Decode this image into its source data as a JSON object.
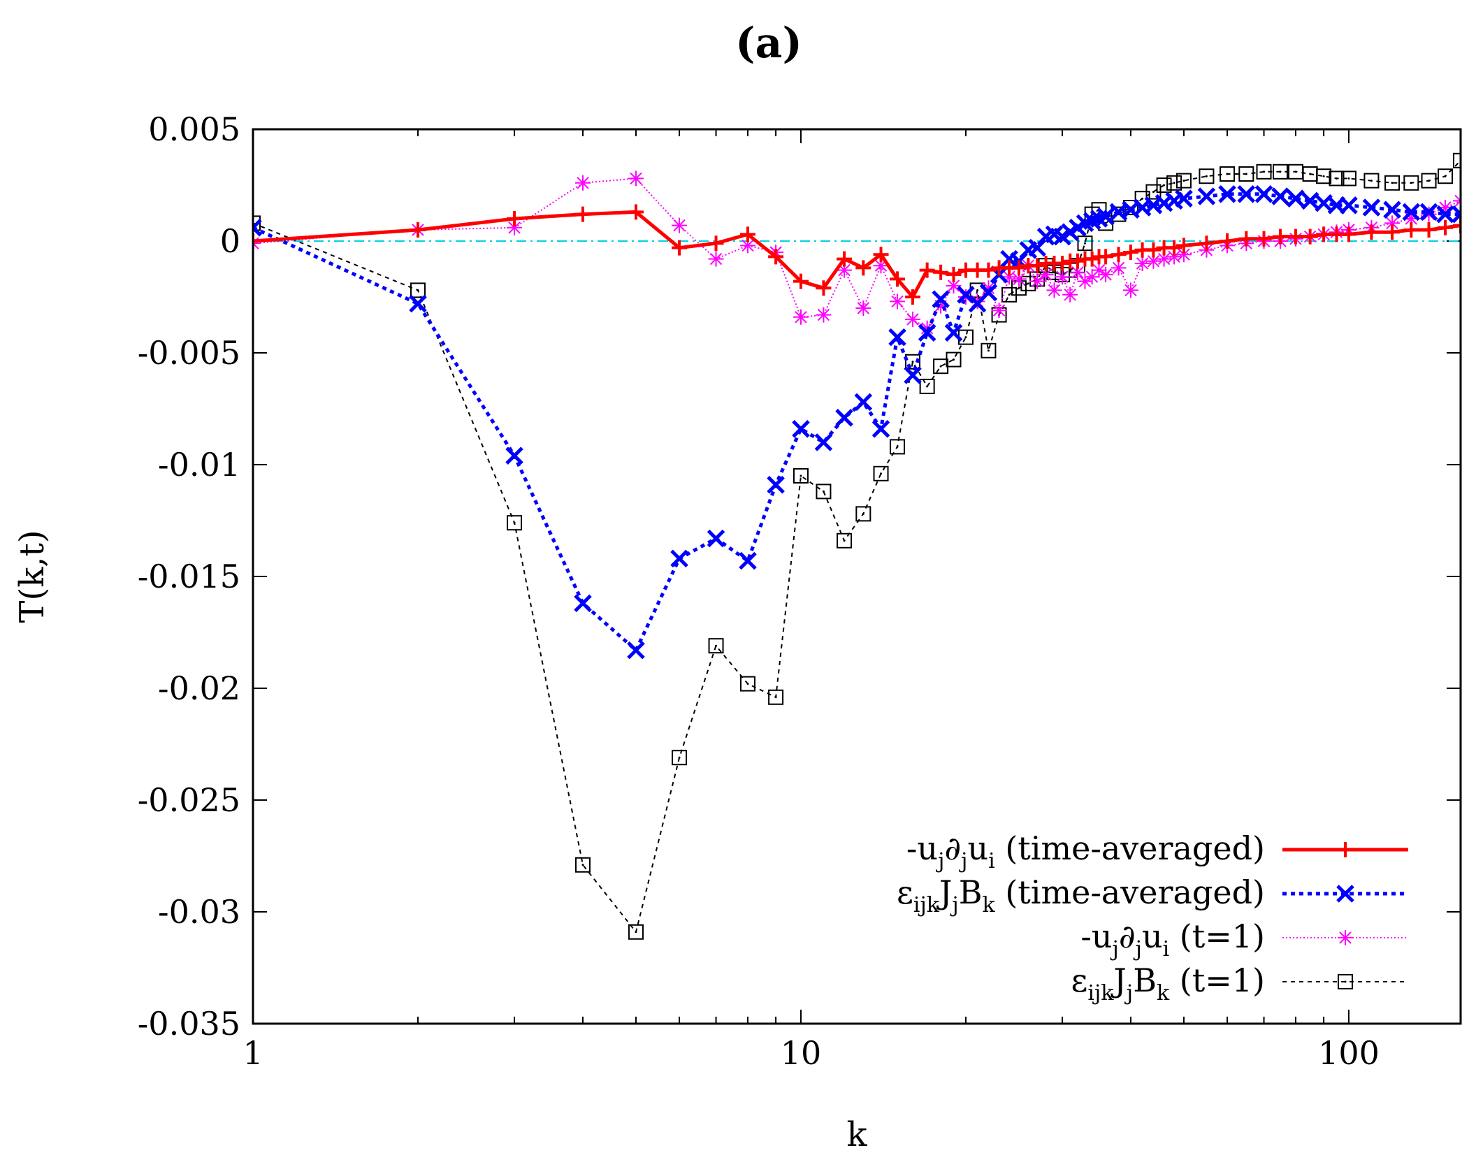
{
  "chart_data": {
    "type": "line",
    "title": "(a)",
    "xlabel": "k",
    "ylabel": "T(k,t)",
    "xscale": "log",
    "xlim": [
      1,
      160
    ],
    "ylim": [
      -0.035,
      0.005
    ],
    "xticks": [
      {
        "value": 1,
        "label": "1"
      },
      {
        "value": 10,
        "label": "10"
      },
      {
        "value": 100,
        "label": "100"
      }
    ],
    "yticks": [
      {
        "value": 0.005,
        "label": "0.005"
      },
      {
        "value": 0,
        "label": "0"
      },
      {
        "value": -0.005,
        "label": "-0.005"
      },
      {
        "value": -0.01,
        "label": "-0.01"
      },
      {
        "value": -0.015,
        "label": "-0.015"
      },
      {
        "value": -0.02,
        "label": "-0.02"
      },
      {
        "value": -0.025,
        "label": "-0.025"
      },
      {
        "value": -0.03,
        "label": "-0.03"
      },
      {
        "value": -0.035,
        "label": "-0.035"
      }
    ],
    "zero_line": {
      "value": 0,
      "color": "#00d0e0"
    },
    "legend_position": "bottom-right",
    "series": [
      {
        "name": "-u_j∂_ju_i (time-averaged)",
        "legend": [
          [
            "-u",
            ""
          ],
          [
            "j",
            "sub"
          ],
          [
            "∂",
            ""
          ],
          [
            "j",
            "sub"
          ],
          [
            "u",
            ""
          ],
          [
            "i",
            "sub"
          ],
          [
            " (time-averaged)",
            ""
          ]
        ],
        "color": "#ff0000",
        "marker": "plus",
        "dash": "",
        "width": 5,
        "x": [
          1,
          2,
          3,
          4,
          5,
          6,
          7,
          8,
          9,
          10,
          11,
          12,
          13,
          14,
          15,
          16,
          17,
          18,
          19,
          20,
          21,
          22,
          23,
          24,
          25,
          26,
          27,
          28,
          29,
          30,
          31,
          32,
          33,
          34,
          35,
          36,
          38,
          40,
          42,
          44,
          46,
          48,
          50,
          55,
          60,
          65,
          70,
          75,
          80,
          85,
          90,
          95,
          100,
          110,
          120,
          130,
          140,
          150,
          160
        ],
        "y": [
          0.0,
          0.0005,
          0.001,
          0.0012,
          0.0013,
          -0.0003,
          -0.0001,
          0.0003,
          -0.0007,
          -0.0018,
          -0.0021,
          -0.0008,
          -0.0012,
          -0.0006,
          -0.0017,
          -0.0025,
          -0.0013,
          -0.0014,
          -0.0015,
          -0.0013,
          -0.0013,
          -0.0013,
          -0.0012,
          -0.0012,
          -0.0012,
          -0.0011,
          -0.0011,
          -0.001,
          -0.001,
          -0.001,
          -0.0009,
          -0.0009,
          -0.0008,
          -0.0008,
          -0.0007,
          -0.0007,
          -0.0006,
          -0.0005,
          -0.0004,
          -0.0004,
          -0.0003,
          -0.0003,
          -0.0002,
          -0.0001,
          0.0,
          0.0001,
          0.0001,
          0.0002,
          0.0002,
          0.0002,
          0.0003,
          0.0003,
          0.0003,
          0.0004,
          0.0004,
          0.0005,
          0.0005,
          0.0006,
          0.0007
        ]
      },
      {
        "name": "ε_ijkJ_jB_k (time-averaged)",
        "legend": [
          [
            "ε",
            ""
          ],
          [
            "ijk",
            "sub"
          ],
          [
            "J",
            ""
          ],
          [
            "j",
            "sub"
          ],
          [
            "B",
            ""
          ],
          [
            "k",
            "sub"
          ],
          [
            " (time-averaged)",
            ""
          ]
        ],
        "color": "#0000ff",
        "marker": "cross",
        "dash": "6,6",
        "width": 5,
        "x": [
          1,
          2,
          3,
          4,
          5,
          6,
          7,
          8,
          9,
          10,
          11,
          12,
          13,
          14,
          15,
          16,
          17,
          18,
          19,
          20,
          21,
          22,
          23,
          24,
          25,
          26,
          27,
          28,
          29,
          30,
          31,
          32,
          33,
          34,
          35,
          36,
          38,
          40,
          42,
          44,
          46,
          48,
          50,
          55,
          60,
          65,
          70,
          75,
          80,
          85,
          90,
          95,
          100,
          110,
          120,
          130,
          140,
          150,
          160
        ],
        "y": [
          0.0006,
          -0.0028,
          -0.0096,
          -0.0162,
          -0.0183,
          -0.0142,
          -0.0133,
          -0.0143,
          -0.0109,
          -0.0084,
          -0.009,
          -0.0079,
          -0.0072,
          -0.0084,
          -0.0043,
          -0.006,
          -0.0041,
          -0.0026,
          -0.0041,
          -0.0024,
          -0.0028,
          -0.0023,
          -0.0015,
          -0.0008,
          -0.0009,
          -0.0004,
          -0.0003,
          0.0002,
          0.0003,
          0.0002,
          0.0004,
          0.0006,
          0.0008,
          0.0009,
          0.001,
          0.0011,
          0.0013,
          0.0014,
          0.0015,
          0.0016,
          0.0017,
          0.0018,
          0.0019,
          0.002,
          0.0021,
          0.0021,
          0.0021,
          0.002,
          0.0019,
          0.0018,
          0.0017,
          0.0016,
          0.0016,
          0.0015,
          0.0014,
          0.0013,
          0.0013,
          0.0012,
          0.0012
        ]
      },
      {
        "name": "-u_j∂_ju_i (t=1)",
        "legend": [
          [
            "-u",
            ""
          ],
          [
            "j",
            "sub"
          ],
          [
            "∂",
            ""
          ],
          [
            "j",
            "sub"
          ],
          [
            "u",
            ""
          ],
          [
            "i",
            "sub"
          ],
          [
            " (t=1)",
            ""
          ]
        ],
        "color": "#ff00ff",
        "marker": "star",
        "dash": "2,3",
        "width": 2,
        "x": [
          1,
          2,
          3,
          4,
          5,
          6,
          7,
          8,
          9,
          10,
          11,
          12,
          13,
          14,
          15,
          16,
          17,
          18,
          19,
          20,
          21,
          22,
          23,
          24,
          25,
          26,
          27,
          28,
          29,
          30,
          31,
          32,
          33,
          34,
          35,
          36,
          38,
          40,
          42,
          44,
          46,
          48,
          50,
          55,
          60,
          65,
          70,
          75,
          80,
          85,
          90,
          95,
          100,
          110,
          120,
          130,
          140,
          150,
          160
        ],
        "y": [
          -0.0001,
          0.0005,
          0.0006,
          0.0026,
          0.0028,
          0.0007,
          -0.0008,
          -0.0002,
          -0.0005,
          -0.0034,
          -0.0033,
          -0.0013,
          -0.003,
          -0.0011,
          -0.0027,
          -0.0035,
          -0.0039,
          -0.0029,
          -0.002,
          -0.0025,
          -0.0027,
          -0.0021,
          -0.0031,
          -0.0016,
          -0.0017,
          -0.0011,
          -0.0018,
          -0.0015,
          -0.0022,
          -0.0016,
          -0.0024,
          -0.0014,
          -0.0018,
          -0.0016,
          -0.0013,
          -0.0015,
          -0.0012,
          -0.0022,
          -0.001,
          -0.0009,
          -0.0008,
          -0.0007,
          -0.0006,
          -0.0004,
          -0.0002,
          -0.0001,
          0.0,
          0.0,
          0.0001,
          0.0002,
          0.0003,
          0.0004,
          0.0005,
          0.0006,
          0.0008,
          0.001,
          0.0012,
          0.0015,
          0.0018
        ]
      },
      {
        "name": "ε_ijkJ_jB_k (t=1)",
        "legend": [
          [
            "ε",
            ""
          ],
          [
            "ijk",
            "sub"
          ],
          [
            "J",
            ""
          ],
          [
            "j",
            "sub"
          ],
          [
            "B",
            ""
          ],
          [
            "k",
            "sub"
          ],
          [
            " (t=1)",
            ""
          ]
        ],
        "color": "#000000",
        "marker": "square",
        "dash": "6,6",
        "width": 2,
        "x": [
          1,
          2,
          3,
          4,
          5,
          6,
          7,
          8,
          9,
          10,
          11,
          12,
          13,
          14,
          15,
          16,
          17,
          18,
          19,
          20,
          21,
          22,
          23,
          24,
          25,
          26,
          27,
          28,
          29,
          30,
          31,
          32,
          33,
          34,
          35,
          36,
          38,
          40,
          42,
          44,
          46,
          48,
          50,
          55,
          60,
          65,
          70,
          75,
          80,
          85,
          90,
          95,
          100,
          110,
          120,
          130,
          140,
          150,
          160
        ],
        "y": [
          0.0008,
          -0.0022,
          -0.0126,
          -0.0279,
          -0.0309,
          -0.0231,
          -0.0181,
          -0.0198,
          -0.0204,
          -0.0105,
          -0.0112,
          -0.0134,
          -0.0122,
          -0.0104,
          -0.0092,
          -0.0054,
          -0.0065,
          -0.0056,
          -0.0053,
          -0.0043,
          -0.0022,
          -0.0049,
          -0.0033,
          -0.0024,
          -0.0021,
          -0.0019,
          -0.0017,
          -0.0011,
          -0.0014,
          -0.0015,
          -0.0013,
          -0.0011,
          -0.0001,
          0.0012,
          0.0014,
          0.0008,
          0.0012,
          0.0015,
          0.0019,
          0.0022,
          0.0025,
          0.0026,
          0.0027,
          0.0029,
          0.003,
          0.003,
          0.0031,
          0.0031,
          0.0031,
          0.003,
          0.0029,
          0.0028,
          0.0028,
          0.0027,
          0.0026,
          0.0026,
          0.0027,
          0.0029,
          0.0036
        ]
      }
    ]
  }
}
